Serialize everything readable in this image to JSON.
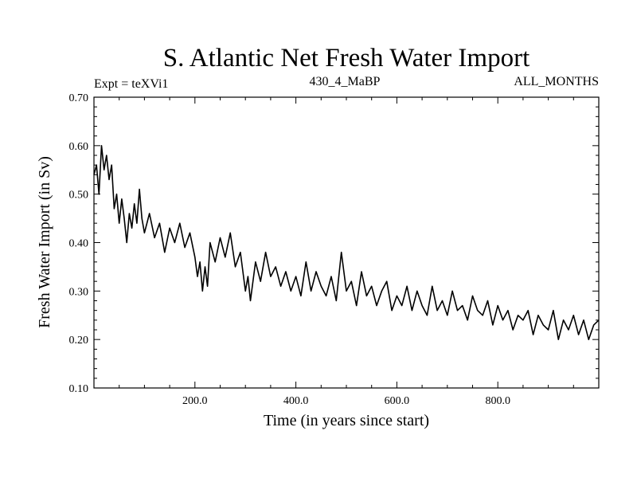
{
  "chart_data": {
    "type": "line",
    "title": "S. Atlantic Net Fresh Water Import",
    "subtitle_left": "Expt = teXVi1",
    "subtitle_center": "430_4_MaBP",
    "subtitle_right": "ALL_MONTHS",
    "xlabel": "Time (in years since start)",
    "ylabel": "Fresh Water Import (in Sv)",
    "xlim": [
      0,
      1000
    ],
    "ylim": [
      0.1,
      0.7
    ],
    "xticks": [
      200,
      400,
      600,
      800
    ],
    "xtick_labels": [
      "200.0",
      "400.0",
      "600.0",
      "800.0"
    ],
    "yticks": [
      0.1,
      0.2,
      0.3,
      0.4,
      0.5,
      0.6,
      0.7
    ],
    "ytick_labels": [
      "0.10",
      "0.20",
      "0.30",
      "0.40",
      "0.50",
      "0.60",
      "0.70"
    ],
    "line_color": "#000000",
    "series": [
      {
        "name": "Fresh Water Import",
        "x": [
          0,
          5,
          10,
          15,
          20,
          25,
          30,
          35,
          40,
          45,
          50,
          55,
          60,
          65,
          70,
          75,
          80,
          85,
          90,
          95,
          100,
          110,
          120,
          130,
          140,
          150,
          160,
          170,
          180,
          190,
          200,
          205,
          210,
          215,
          220,
          225,
          230,
          240,
          250,
          260,
          270,
          280,
          290,
          300,
          305,
          310,
          320,
          330,
          340,
          350,
          360,
          370,
          380,
          390,
          400,
          410,
          420,
          430,
          440,
          450,
          460,
          470,
          480,
          490,
          500,
          510,
          520,
          530,
          540,
          550,
          560,
          570,
          580,
          590,
          600,
          610,
          620,
          630,
          640,
          650,
          660,
          670,
          680,
          690,
          700,
          710,
          720,
          730,
          740,
          750,
          760,
          770,
          780,
          790,
          800,
          810,
          820,
          830,
          840,
          850,
          860,
          870,
          880,
          890,
          900,
          910,
          920,
          930,
          940,
          950,
          960,
          970,
          980,
          990,
          1000
        ],
        "values": [
          0.54,
          0.56,
          0.5,
          0.6,
          0.55,
          0.58,
          0.53,
          0.56,
          0.47,
          0.5,
          0.44,
          0.49,
          0.45,
          0.4,
          0.46,
          0.43,
          0.48,
          0.44,
          0.51,
          0.45,
          0.42,
          0.46,
          0.41,
          0.44,
          0.38,
          0.43,
          0.4,
          0.44,
          0.39,
          0.42,
          0.37,
          0.33,
          0.36,
          0.3,
          0.35,
          0.31,
          0.4,
          0.36,
          0.41,
          0.37,
          0.42,
          0.35,
          0.38,
          0.3,
          0.33,
          0.28,
          0.36,
          0.32,
          0.38,
          0.33,
          0.35,
          0.31,
          0.34,
          0.3,
          0.33,
          0.29,
          0.36,
          0.3,
          0.34,
          0.31,
          0.29,
          0.33,
          0.28,
          0.38,
          0.3,
          0.32,
          0.27,
          0.34,
          0.29,
          0.31,
          0.27,
          0.3,
          0.32,
          0.26,
          0.29,
          0.27,
          0.31,
          0.26,
          0.3,
          0.27,
          0.25,
          0.31,
          0.26,
          0.28,
          0.25,
          0.3,
          0.26,
          0.27,
          0.24,
          0.29,
          0.26,
          0.25,
          0.28,
          0.23,
          0.27,
          0.24,
          0.26,
          0.22,
          0.25,
          0.24,
          0.26,
          0.21,
          0.25,
          0.23,
          0.22,
          0.26,
          0.2,
          0.24,
          0.22,
          0.25,
          0.21,
          0.24,
          0.2,
          0.23,
          0.24
        ]
      }
    ]
  }
}
